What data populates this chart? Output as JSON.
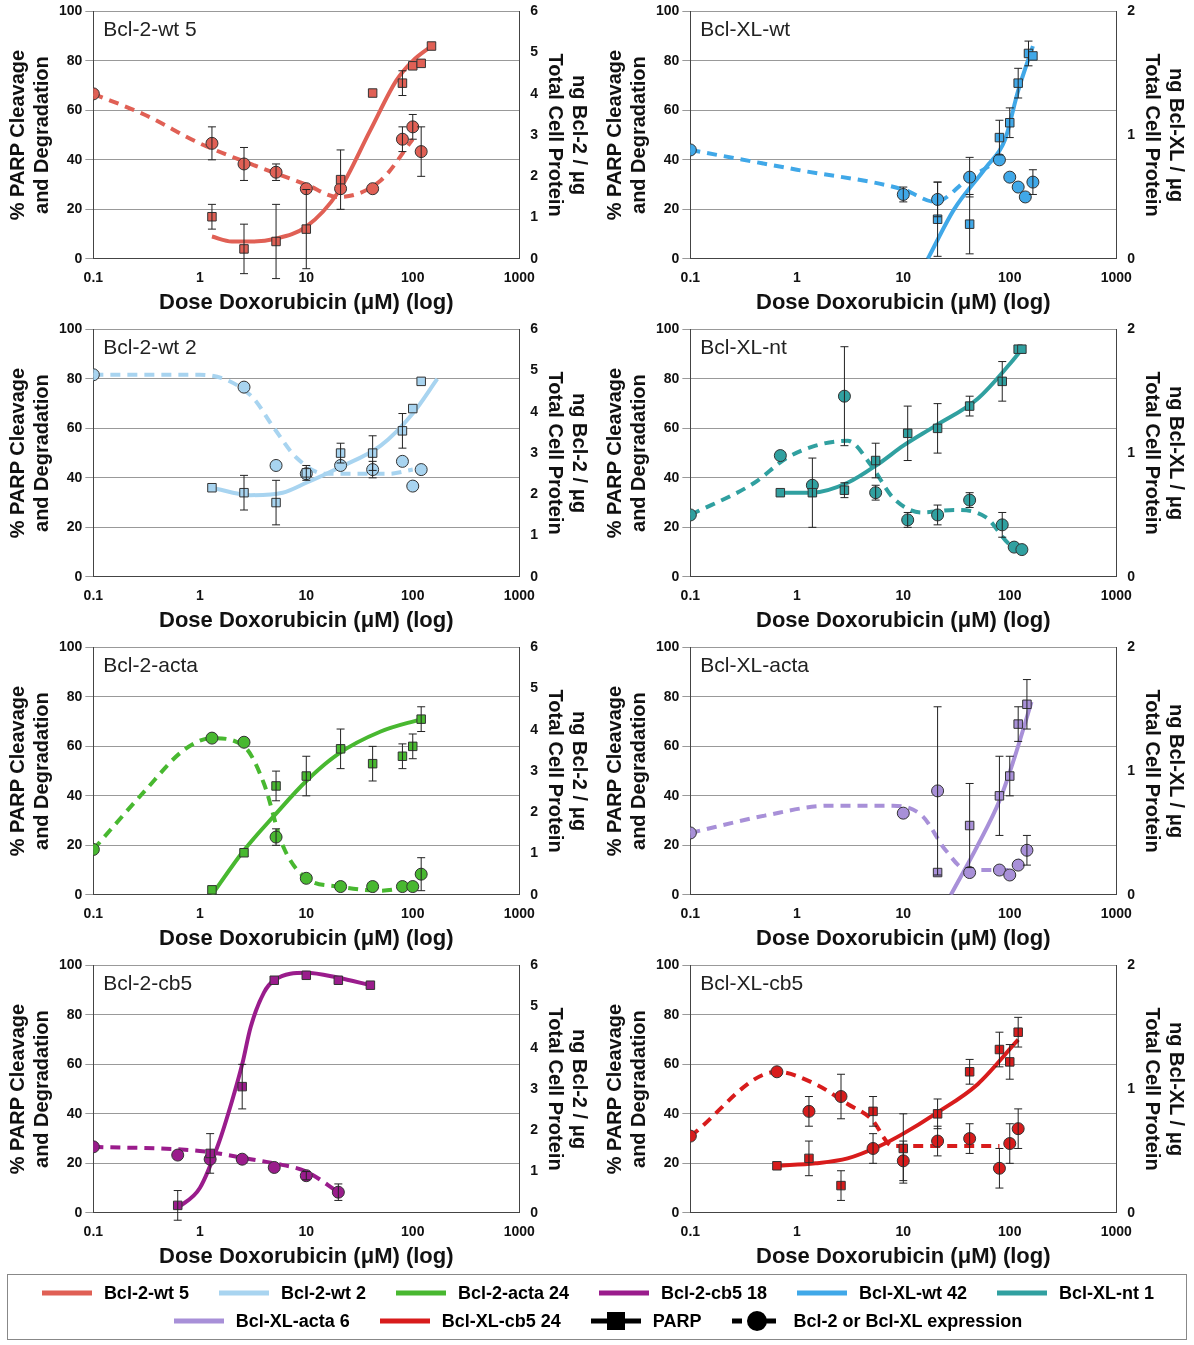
{
  "chart_data": [
    {
      "type": "scatter",
      "title": "Bcl-2-wt 5",
      "xlabel": "Dose Doxorubicin (μM) (log)",
      "ylabel": "% PARP Cleavage and Degradation",
      "y2label": "ng Bcl-2 / μg Total Cell Protein",
      "log": "x",
      "grid": "y",
      "xlim": [
        0.1,
        1000
      ],
      "xticks": [
        0.1,
        1,
        10,
        100,
        1000
      ],
      "ylim": [
        0,
        100
      ],
      "yticks": [
        0,
        20,
        40,
        60,
        80,
        100
      ],
      "y2lim": [
        0,
        6
      ],
      "y2ticks": [
        0,
        1,
        2,
        3,
        4,
        5,
        6
      ],
      "series": [
        {
          "type": "line",
          "color": "#e06055",
          "line_style": "solid",
          "x": [
            1.3,
            2,
            3,
            5,
            10,
            20,
            40,
            70,
            100,
            150
          ],
          "values": [
            9,
            7,
            7,
            8,
            13,
            27,
            52,
            72,
            80,
            86
          ]
        },
        {
          "type": "line",
          "axis": "y2",
          "color": "#e06055",
          "line_style": "dashed",
          "x": [
            0.1,
            0.3,
            1,
            3,
            10,
            20,
            50,
            100
          ],
          "values": [
            4.0,
            3.5,
            2.8,
            2.3,
            1.8,
            1.5,
            1.9,
            2.9
          ]
        },
        {
          "type": "scatter",
          "marker": "square",
          "color": "#e06055",
          "x": [
            1.3,
            2.6,
            5.2,
            10,
            21,
            42,
            80,
            100,
            120,
            150
          ],
          "values": [
            17,
            4,
            7,
            12,
            32,
            67,
            71,
            78,
            79,
            86
          ],
          "errors": [
            5,
            10,
            15,
            16,
            12,
            null,
            5,
            null,
            null,
            null
          ]
        },
        {
          "type": "scatter",
          "axis": "y2",
          "marker": "circle",
          "color": "#e06055",
          "x": [
            0.1,
            1.3,
            2.6,
            5.2,
            10,
            21,
            42,
            80,
            100,
            120
          ],
          "values": [
            4.0,
            2.8,
            2.3,
            2.1,
            1.7,
            1.7,
            1.7,
            2.9,
            3.2,
            2.6
          ],
          "errors": [
            null,
            0.4,
            0.4,
            0.2,
            null,
            null,
            null,
            0.3,
            0.3,
            0.6
          ]
        }
      ]
    },
    {
      "type": "scatter",
      "title": "Bcl-XL-wt",
      "xlabel": "Dose Doxorubicin (μM) (log)",
      "ylabel": "% PARP Cleavage and Degradation",
      "y2label": "ng Bcl-XL / μg Total Cell Protein",
      "log": "x",
      "grid": "y",
      "xlim": [
        0.1,
        1000
      ],
      "xticks": [
        0.1,
        1,
        10,
        100,
        1000
      ],
      "ylim": [
        0,
        100
      ],
      "yticks": [
        0,
        20,
        40,
        60,
        80,
        100
      ],
      "y2lim": [
        0,
        2
      ],
      "y2ticks": [
        0,
        1,
        2
      ],
      "series": [
        {
          "type": "line",
          "color": "#40a8e8",
          "line_style": "solid",
          "x": [
            17,
            30,
            60,
            90,
            120,
            165
          ],
          "values": [
            0,
            20,
            37,
            48,
            68,
            86
          ]
        },
        {
          "type": "line",
          "axis": "y2",
          "color": "#40a8e8",
          "line_style": "dashed",
          "x": [
            0.1,
            1,
            10,
            20,
            40,
            80
          ],
          "values": [
            0.88,
            0.72,
            0.56,
            0.46,
            0.64,
            0.8
          ]
        },
        {
          "type": "scatter",
          "marker": "square",
          "color": "#40a8e8",
          "x": [
            21,
            42,
            80,
            100,
            120,
            150,
            165
          ],
          "values": [
            16,
            14,
            49,
            55,
            71,
            83,
            82
          ],
          "errors": [
            15,
            12,
            7,
            6,
            6,
            5,
            null
          ]
        },
        {
          "type": "scatter",
          "axis": "y2",
          "marker": "circle",
          "color": "#40a8e8",
          "x": [
            0.1,
            10,
            21,
            42,
            80,
            100,
            120,
            140,
            165
          ],
          "values": [
            0.88,
            0.52,
            0.48,
            0.66,
            0.8,
            0.66,
            0.58,
            0.5,
            0.62
          ],
          "errors": [
            null,
            0.06,
            0.14,
            0.16,
            null,
            null,
            null,
            null,
            0.1
          ]
        }
      ]
    },
    {
      "type": "scatter",
      "title": "Bcl-2-wt 2",
      "xlabel": "Dose Doxorubicin (μM) (log)",
      "ylabel": "% PARP Cleavage and Degradation",
      "y2label": "ng Bcl-2 / μg Total Cell Protein",
      "log": "x",
      "grid": "y",
      "xlim": [
        0.1,
        1000
      ],
      "xticks": [
        0.1,
        1,
        10,
        100,
        1000
      ],
      "ylim": [
        0,
        100
      ],
      "yticks": [
        0,
        20,
        40,
        60,
        80,
        100
      ],
      "y2lim": [
        0,
        6
      ],
      "y2ticks": [
        0,
        1,
        2,
        3,
        4,
        5,
        6
      ],
      "series": [
        {
          "type": "line",
          "color": "#a8d4f0",
          "line_style": "solid",
          "x": [
            1.3,
            3,
            6,
            10,
            20,
            50,
            100,
            170
          ],
          "values": [
            36,
            33,
            34,
            38,
            44,
            53,
            66,
            80
          ]
        },
        {
          "type": "line",
          "axis": "y2",
          "color": "#a8d4f0",
          "line_style": "dashed",
          "x": [
            0.1,
            1,
            3,
            5,
            8,
            15,
            30,
            60,
            100
          ],
          "values": [
            4.9,
            4.9,
            4.4,
            3.6,
            2.9,
            2.5,
            2.5,
            2.5,
            2.6
          ]
        },
        {
          "type": "scatter",
          "marker": "square",
          "color": "#a8d4f0",
          "x": [
            1.3,
            2.6,
            5.2,
            10,
            21,
            42,
            80,
            100,
            120
          ],
          "values": [
            36,
            34,
            30,
            42,
            50,
            50,
            59,
            68,
            79
          ],
          "errors": [
            null,
            7,
            9,
            3,
            4,
            7,
            7,
            null,
            null
          ]
        },
        {
          "type": "scatter",
          "axis": "y2",
          "marker": "circle",
          "color": "#a8d4f0",
          "x": [
            0.1,
            2.6,
            5.2,
            10,
            21,
            42,
            80,
            100,
            120
          ],
          "values": [
            4.9,
            4.6,
            2.7,
            2.5,
            2.7,
            2.6,
            2.8,
            2.2,
            2.6
          ],
          "errors": [
            null,
            null,
            null,
            null,
            null,
            0.2,
            null,
            null,
            null
          ]
        }
      ]
    },
    {
      "type": "scatter",
      "title": "Bcl-XL-nt",
      "xlabel": "Dose Doxorubicin (μM) (log)",
      "ylabel": "% PARP Cleavage and Degradation",
      "y2label": "ng Bcl-XL / μg Total Cell Protein",
      "log": "x",
      "grid": "y",
      "xlim": [
        0.1,
        1000
      ],
      "xticks": [
        0.1,
        1,
        10,
        100,
        1000
      ],
      "ylim": [
        0,
        100
      ],
      "yticks": [
        0,
        20,
        40,
        60,
        80,
        100
      ],
      "y2lim": [
        0,
        2
      ],
      "y2ticks": [
        0,
        1,
        2
      ],
      "series": [
        {
          "type": "line",
          "color": "#30a0a0",
          "line_style": "solid",
          "x": [
            0.7,
            1.4,
            3,
            6,
            10,
            20,
            50,
            100,
            130
          ],
          "values": [
            34,
            34,
            38,
            46,
            53,
            61,
            72,
            86,
            92
          ]
        },
        {
          "type": "line",
          "axis": "y2",
          "color": "#30a0a0",
          "line_style": "dashed",
          "x": [
            0.1,
            0.4,
            0.8,
            1.5,
            3,
            5,
            8,
            15,
            30,
            60,
            100,
            130
          ],
          "values": [
            0.5,
            0.76,
            0.96,
            1.06,
            1.1,
            0.9,
            0.64,
            0.52,
            0.54,
            0.48,
            0.26,
            0.22
          ]
        },
        {
          "type": "scatter",
          "marker": "square",
          "color": "#30a0a0",
          "x": [
            0.7,
            1.4,
            2.8,
            5.5,
            11,
            21,
            42,
            85,
            120,
            130
          ],
          "values": [
            34,
            34,
            35,
            47,
            58,
            60,
            69,
            79,
            92,
            92
          ],
          "errors": [
            null,
            14,
            3,
            7,
            11,
            10,
            4,
            8,
            null,
            null
          ]
        },
        {
          "type": "scatter",
          "axis": "y2",
          "marker": "circle",
          "color": "#30a0a0",
          "x": [
            0.1,
            0.7,
            1.4,
            2.8,
            5.5,
            11,
            21,
            42,
            85,
            110,
            130
          ],
          "values": [
            0.5,
            0.98,
            0.74,
            1.46,
            0.68,
            0.46,
            0.5,
            0.62,
            0.42,
            0.24,
            0.22
          ],
          "errors": [
            null,
            null,
            null,
            0.4,
            0.06,
            0.06,
            0.08,
            0.06,
            0.1,
            null,
            null
          ]
        }
      ]
    },
    {
      "type": "scatter",
      "title": "Bcl-2-acta",
      "xlabel": "Dose Doxorubicin (μM) (log)",
      "ylabel": "% PARP Cleavage and Degradation",
      "y2label": "ng Bcl-2 / μg Total Cell Protein",
      "log": "x",
      "grid": "y",
      "xlim": [
        0.1,
        1000
      ],
      "xticks": [
        0.1,
        1,
        10,
        100,
        1000
      ],
      "ylim": [
        0,
        100
      ],
      "yticks": [
        0,
        20,
        40,
        60,
        80,
        100
      ],
      "y2lim": [
        0,
        6
      ],
      "y2ticks": [
        0,
        1,
        2,
        3,
        4,
        5,
        6
      ],
      "series": [
        {
          "type": "line",
          "color": "#48b830",
          "line_style": "solid",
          "x": [
            1.3,
            2.6,
            5,
            10,
            20,
            50,
            120
          ],
          "values": [
            0,
            18,
            32,
            46,
            57,
            66,
            71
          ]
        },
        {
          "type": "line",
          "axis": "y2",
          "color": "#48b830",
          "line_style": "dashed",
          "x": [
            0.1,
            0.3,
            0.7,
            1.3,
            2.6,
            4,
            6,
            10,
            20,
            50,
            100
          ],
          "values": [
            1.1,
            2.5,
            3.5,
            3.8,
            3.6,
            2.7,
            1.2,
            0.4,
            0.2,
            0.1,
            0.2
          ]
        },
        {
          "type": "scatter",
          "marker": "square",
          "color": "#48b830",
          "x": [
            1.3,
            2.6,
            5.2,
            10,
            21,
            42,
            80,
            100,
            120
          ],
          "values": [
            2,
            17,
            44,
            48,
            59,
            53,
            56,
            60,
            71
          ],
          "errors": [
            null,
            null,
            6,
            8,
            8,
            7,
            5,
            5,
            5
          ]
        },
        {
          "type": "scatter",
          "axis": "y2",
          "marker": "circle",
          "color": "#48b830",
          "x": [
            0.1,
            1.3,
            2.6,
            5.2,
            10,
            21,
            42,
            80,
            100,
            120
          ],
          "values": [
            1.1,
            3.8,
            3.7,
            1.4,
            0.4,
            0.2,
            0.2,
            0.2,
            0.2,
            0.5
          ],
          "errors": [
            null,
            null,
            null,
            0.2,
            null,
            null,
            null,
            null,
            null,
            0.4
          ]
        }
      ]
    },
    {
      "type": "scatter",
      "title": "Bcl-XL-acta",
      "xlabel": "Dose Doxorubicin (μM) (log)",
      "ylabel": "% PARP Cleavage and Degradation",
      "y2label": "ng Bcl-XL / μg Total Cell Protein",
      "log": "x",
      "grid": "y",
      "xlim": [
        0.1,
        1000
      ],
      "xticks": [
        0.1,
        1,
        10,
        100,
        1000
      ],
      "ylim": [
        0,
        100
      ],
      "yticks": [
        0,
        20,
        40,
        60,
        80,
        100
      ],
      "y2lim": [
        0,
        2
      ],
      "y2ticks": [
        0,
        1,
        2
      ],
      "series": [
        {
          "type": "line",
          "color": "#a890d8",
          "line_style": "solid",
          "x": [
            28,
            50,
            80,
            110,
            160
          ],
          "values": [
            0,
            20,
            38,
            55,
            78
          ]
        },
        {
          "type": "line",
          "axis": "y2",
          "color": "#a890d8",
          "line_style": "dashed",
          "x": [
            0.1,
            0.5,
            2,
            8,
            15,
            25,
            40,
            70,
            100,
            145
          ],
          "values": [
            0.5,
            0.64,
            0.72,
            0.72,
            0.64,
            0.36,
            0.2,
            0.2,
            0.2,
            0.36
          ]
        },
        {
          "type": "scatter",
          "marker": "square",
          "color": "#a890d8",
          "x": [
            21,
            42,
            80,
            100,
            120,
            145
          ],
          "values": [
            9,
            28,
            40,
            48,
            69,
            77
          ],
          "errors": [
            null,
            17,
            16,
            8,
            7,
            10
          ]
        },
        {
          "type": "scatter",
          "axis": "y2",
          "marker": "circle",
          "color": "#a890d8",
          "x": [
            0.1,
            10,
            21,
            42,
            80,
            100,
            120,
            145
          ],
          "values": [
            0.5,
            0.66,
            0.84,
            0.18,
            0.2,
            0.16,
            0.24,
            0.36
          ],
          "errors": [
            null,
            null,
            0.68,
            null,
            null,
            null,
            null,
            0.12
          ]
        }
      ]
    },
    {
      "type": "scatter",
      "title": "Bcl-2-cb5",
      "xlabel": "Dose Doxorubicin (μM) (log)",
      "ylabel": "% PARP Cleavage and Degradation",
      "y2label": "ng Bcl-2 / μg Total Cell Protein",
      "log": "x",
      "grid": "y",
      "xlim": [
        0.1,
        1000
      ],
      "xticks": [
        0.1,
        1,
        10,
        100,
        1000
      ],
      "ylim": [
        0,
        100
      ],
      "yticks": [
        0,
        20,
        40,
        60,
        80,
        100
      ],
      "y2lim": [
        0,
        6
      ],
      "y2ticks": [
        0,
        1,
        2,
        3,
        4,
        5,
        6
      ],
      "series": [
        {
          "type": "line",
          "color": "#9a1c8c",
          "line_style": "solid",
          "x": [
            0.62,
            1,
            1.5,
            2,
            2.5,
            3,
            4,
            5,
            10,
            20,
            40
          ],
          "values": [
            2,
            10,
            28,
            45,
            60,
            75,
            89,
            94,
            97,
            95,
            92
          ]
        },
        {
          "type": "line",
          "axis": "y2",
          "color": "#9a1c8c",
          "line_style": "dashed",
          "x": [
            0.1,
            1,
            3,
            5,
            10,
            20
          ],
          "values": [
            1.6,
            1.5,
            1.3,
            1.2,
            1.0,
            0.5
          ]
        },
        {
          "type": "scatter",
          "marker": "square",
          "color": "#9a1c8c",
          "x": [
            0.62,
            1.25,
            2.5,
            5,
            10,
            20,
            40
          ],
          "values": [
            3,
            24,
            51,
            94,
            96,
            94,
            92
          ],
          "errors": [
            6,
            8,
            9,
            null,
            null,
            null,
            null
          ]
        },
        {
          "type": "scatter",
          "axis": "y2",
          "marker": "circle",
          "color": "#9a1c8c",
          "x": [
            0.1,
            0.62,
            1.25,
            2.5,
            5,
            10,
            20
          ],
          "values": [
            1.6,
            1.4,
            1.3,
            1.3,
            1.1,
            0.9,
            0.5
          ],
          "errors": [
            null,
            null,
            null,
            null,
            null,
            0.1,
            0.2
          ]
        }
      ]
    },
    {
      "type": "scatter",
      "title": "Bcl-XL-cb5",
      "xlabel": "Dose Doxorubicin (μM) (log)",
      "ylabel": "% PARP Cleavage and Degradation",
      "y2label": "ng Bcl-XL / μg Total Cell Protein",
      "log": "x",
      "grid": "y",
      "xlim": [
        0.1,
        1000
      ],
      "xticks": [
        0.1,
        1,
        10,
        100,
        1000
      ],
      "ylim": [
        0,
        100
      ],
      "yticks": [
        0,
        20,
        40,
        60,
        80,
        100
      ],
      "y2lim": [
        0,
        2
      ],
      "y2ticks": [
        0,
        1,
        2
      ],
      "series": [
        {
          "type": "line",
          "color": "#d81c1c",
          "line_style": "solid",
          "x": [
            0.65,
            1.5,
            3,
            6,
            10,
            20,
            50,
            120
          ],
          "values": [
            19,
            20,
            22,
            27,
            32,
            40,
            52,
            70
          ]
        },
        {
          "type": "line",
          "axis": "y2",
          "color": "#d81c1c",
          "line_style": "dashed",
          "x": [
            0.1,
            0.65,
            1.5,
            3,
            5,
            8,
            20,
            50,
            80
          ],
          "values": [
            0.62,
            1.14,
            1.04,
            0.88,
            0.76,
            0.54,
            0.54,
            0.54,
            0.54
          ]
        },
        {
          "type": "scatter",
          "marker": "square",
          "color": "#d81c1c",
          "x": [
            0.65,
            1.3,
            2.6,
            5.2,
            10,
            21,
            42,
            80,
            100,
            120
          ],
          "values": [
            19,
            22,
            11,
            41,
            26,
            40,
            57,
            66,
            61,
            73
          ],
          "errors": [
            null,
            7,
            6,
            6,
            14,
            6,
            5,
            7,
            7,
            6
          ]
        },
        {
          "type": "scatter",
          "axis": "y2",
          "marker": "circle",
          "color": "#d81c1c",
          "x": [
            0.1,
            0.65,
            1.3,
            2.6,
            5.2,
            10,
            21,
            42,
            80,
            100,
            120
          ],
          "values": [
            0.62,
            1.14,
            0.82,
            0.94,
            0.52,
            0.42,
            0.58,
            0.6,
            0.36,
            0.56,
            0.68
          ],
          "errors": [
            null,
            null,
            0.12,
            0.18,
            0.12,
            0.16,
            0.12,
            0.12,
            0.16,
            0.16,
            0.16
          ]
        }
      ]
    },
    {
      "type": "other",
      "legend": "bottom",
      "series": [
        {
          "name": "Bcl-2-wt 5",
          "color": "#e06055",
          "line_style": "solid"
        },
        {
          "name": "Bcl-2-wt 2",
          "color": "#a8d4f0",
          "line_style": "solid"
        },
        {
          "name": "Bcl-2-acta 24",
          "color": "#48b830",
          "line_style": "solid"
        },
        {
          "name": "Bcl-2-cb5 18",
          "color": "#9a1c8c",
          "line_style": "solid"
        },
        {
          "name": "Bcl-XL-wt 42",
          "color": "#40a8e8",
          "line_style": "solid"
        },
        {
          "name": "Bcl-XL-nt 1",
          "color": "#30a0a0",
          "line_style": "solid"
        },
        {
          "name": "Bcl-XL-acta 6",
          "color": "#a890d8",
          "line_style": "solid"
        },
        {
          "name": "Bcl-XL-cb5 24",
          "color": "#d81c1c",
          "line_style": "solid"
        },
        {
          "name": "PARP",
          "color": "#000000",
          "line_style": "solid",
          "marker": "square"
        },
        {
          "name": "Bcl-2 or Bcl-XL expression",
          "color": "#000000",
          "line_style": "dashed",
          "marker": "circle"
        }
      ]
    }
  ]
}
